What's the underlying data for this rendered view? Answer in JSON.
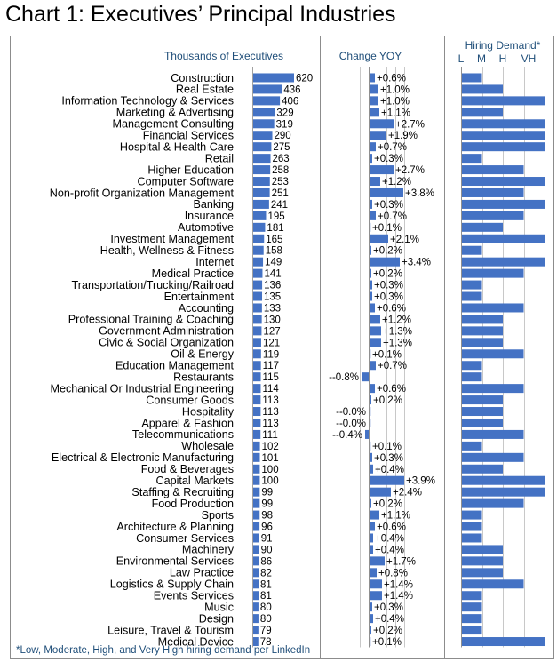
{
  "chart_data": {
    "type": "bar",
    "title": "Chart 1: Executives’ Principal Industries",
    "panels": {
      "executives_header": "Thousands of Executives",
      "yoy_header": "Change YOY",
      "demand_header": "Hiring Demand*",
      "demand_levels": [
        "L",
        "M",
        "H",
        "VH"
      ]
    },
    "footnote": "*Low, Moderate, High, and Very High hiring demand per LinkedIn",
    "categories": [
      "Construction",
      "Real Estate",
      "Information Technology & Services",
      "Marketing & Advertising",
      "Management Consulting",
      "Financial Services",
      "Hospital & Health Care",
      "Retail",
      "Higher Education",
      "Computer Software",
      "Non-profit Organization Management",
      "Banking",
      "Insurance",
      "Automotive",
      "Investment Management",
      "Health, Wellness & Fitness",
      "Internet",
      "Medical Practice",
      "Transportation/Trucking/Railroad",
      "Entertainment",
      "Accounting",
      "Professional Training & Coaching",
      "Government Administration",
      "Civic & Social Organization",
      "Oil & Energy",
      "Education Management",
      "Restaurants",
      "Mechanical Or Industrial Engineering",
      "Consumer Goods",
      "Hospitality",
      "Apparel & Fashion",
      "Telecommunications",
      "Wholesale",
      "Electrical & Electronic Manufacturing",
      "Food & Beverages",
      "Capital Markets",
      "Staffing & Recruiting",
      "Food Production",
      "Sports",
      "Architecture & Planning",
      "Consumer Services",
      "Machinery",
      "Environmental Services",
      "Law Practice",
      "Logistics & Supply Chain",
      "Events Services",
      "Music",
      "Design",
      "Leisure, Travel & Tourism",
      "Medical Device"
    ],
    "series": [
      {
        "name": "Thousands of Executives",
        "values": [
          620,
          436,
          406,
          329,
          319,
          290,
          275,
          263,
          258,
          253,
          251,
          241,
          195,
          181,
          165,
          158,
          149,
          141,
          136,
          135,
          133,
          130,
          127,
          121,
          119,
          117,
          115,
          114,
          113,
          113,
          113,
          111,
          102,
          101,
          100,
          100,
          99,
          99,
          98,
          96,
          91,
          90,
          86,
          82,
          81,
          81,
          80,
          80,
          79,
          78
        ],
        "labels": [
          "620",
          "436",
          "406",
          "329",
          "319",
          "290",
          "275",
          "263",
          "258",
          "253",
          "251",
          "241",
          "195",
          "181",
          "165",
          "158",
          "149",
          "141",
          "136",
          "135",
          "133",
          "130",
          "127",
          "121",
          "119",
          "117",
          "115",
          "114",
          "113",
          "113",
          "113",
          "111",
          "102",
          "101",
          "100",
          "100",
          "99",
          "99",
          "98",
          "96",
          "91",
          "90",
          "86",
          "82",
          "81",
          "81",
          "80",
          "80",
          "79",
          "78"
        ],
        "xlim": [
          0,
          620
        ]
      },
      {
        "name": "Change YOY",
        "values": [
          0.6,
          1.0,
          1.0,
          1.1,
          2.7,
          1.9,
          0.7,
          0.3,
          2.7,
          1.2,
          3.8,
          0.3,
          0.7,
          0.1,
          2.1,
          0.2,
          3.4,
          0.2,
          0.3,
          0.3,
          0.6,
          1.2,
          1.3,
          1.3,
          0.1,
          0.7,
          -0.8,
          0.6,
          0.2,
          -0.0,
          -0.0,
          -0.4,
          0.1,
          0.3,
          0.4,
          3.9,
          2.4,
          0.2,
          1.1,
          0.6,
          0.4,
          0.4,
          1.7,
          0.8,
          1.4,
          1.4,
          0.3,
          0.4,
          0.2,
          0.1
        ],
        "labels": [
          "+0.6%",
          "+1.0%",
          "+1.0%",
          "+1.1%",
          "+2.7%",
          "+1.9%",
          "+0.7%",
          "+0.3%",
          "+2.7%",
          "+1.2%",
          "+3.8%",
          "+0.3%",
          "+0.7%",
          "+0.1%",
          "+2.1%",
          "+0.2%",
          "+3.4%",
          "+0.2%",
          "+0.3%",
          "+0.3%",
          "+0.6%",
          "+1.2%",
          "+1.3%",
          "+1.3%",
          "+0.1%",
          "+0.7%",
          "--0.8%",
          "+0.6%",
          "+0.2%",
          "--0.0%",
          "--0.0%",
          "--0.4%",
          "+0.1%",
          "+0.3%",
          "+0.4%",
          "+3.9%",
          "+2.4%",
          "+0.2%",
          "+1.1%",
          "+0.6%",
          "+0.4%",
          "+0.4%",
          "+1.7%",
          "+0.8%",
          "+1.4%",
          "+1.4%",
          "+0.3%",
          "+0.4%",
          "+0.2%",
          "+0.1%"
        ],
        "xlim": [
          -1.0,
          4.0
        ],
        "grid": true
      },
      {
        "name": "Hiring Demand*",
        "values": [
          1,
          2,
          4,
          2,
          4,
          4,
          4,
          1,
          3,
          4,
          3,
          4,
          3,
          2,
          4,
          1,
          4,
          3,
          1,
          1,
          3,
          2,
          2,
          2,
          3,
          1,
          1,
          3,
          2,
          2,
          2,
          3,
          1,
          3,
          2,
          4,
          4,
          3,
          1,
          1,
          1,
          2,
          2,
          2,
          3,
          1,
          1,
          1,
          1,
          4
        ],
        "xlim": [
          0,
          4
        ],
        "grid": true
      }
    ]
  }
}
